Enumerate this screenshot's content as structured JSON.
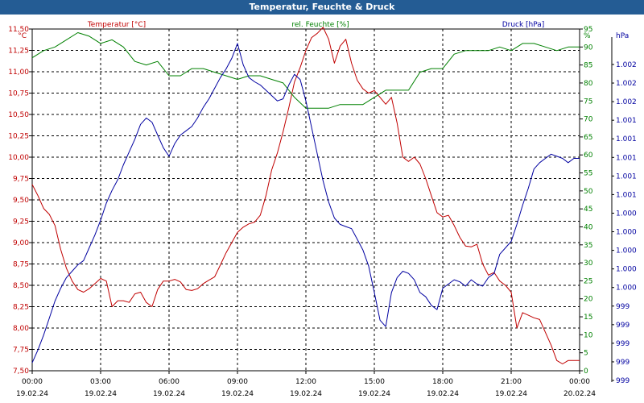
{
  "window": {
    "title": "Temperatur, Feuchte & Druck"
  },
  "chart_data": {
    "type": "line",
    "title": "Temperatur, Feuchte & Druck",
    "xlabel": "",
    "ylabel": "",
    "grid": true,
    "x_ticks": [
      {
        "time": "00:00",
        "date": "19.02.24"
      },
      {
        "time": "03:00",
        "date": "19.02.24"
      },
      {
        "time": "06:00",
        "date": "19.02.24"
      },
      {
        "time": "09:00",
        "date": "19.02.24"
      },
      {
        "time": "12:00",
        "date": "19.02.24"
      },
      {
        "time": "15:00",
        "date": "19.02.24"
      },
      {
        "time": "18:00",
        "date": "19.02.24"
      },
      {
        "time": "21:00",
        "date": "19.02.24"
      },
      {
        "time": "00:00",
        "date": "20.02.24"
      }
    ],
    "xlim_hours": [
      0,
      24
    ],
    "axes": {
      "temperature": {
        "label": "Temperatur [°C]",
        "unit": "°C",
        "color": "#c00000",
        "ylim": [
          7.5,
          11.5
        ],
        "ticks": [
          "7,50",
          "7,75",
          "8,00",
          "8,25",
          "8,50",
          "8,75",
          "9,00",
          "9,25",
          "9,50",
          "9,75",
          "10,00",
          "10,25",
          "10,50",
          "10,75",
          "11,00",
          "11,25",
          "11,50"
        ]
      },
      "humidity": {
        "label": "rel. Feuchte [%]",
        "unit": "%",
        "color": "#008000",
        "ylim": [
          0,
          95
        ],
        "ticks": [
          "0",
          "5",
          "10",
          "15",
          "20",
          "25",
          "30",
          "35",
          "40",
          "45",
          "50",
          "55",
          "60",
          "65",
          "70",
          "75",
          "80",
          "85",
          "90",
          "95"
        ]
      },
      "pressure": {
        "label": "Druck [hPa]",
        "unit": "hPa",
        "color": "#0000a0",
        "ticks": [
          "999",
          "999",
          "999",
          "999",
          "999",
          "1.000",
          "1.000",
          "1.000",
          "1.000",
          "1.000",
          "1.001",
          "1.001",
          "1.001",
          "1.001",
          "1.001",
          "1.002",
          "1.002",
          "1.002"
        ]
      }
    },
    "series": [
      {
        "name": "Temperatur [°C]",
        "axis": "temperature",
        "color": "#c00000",
        "x": [
          0,
          0.25,
          0.5,
          0.75,
          1,
          1.25,
          1.5,
          1.75,
          2,
          2.25,
          2.5,
          2.75,
          3,
          3.25,
          3.5,
          3.75,
          4,
          4.25,
          4.5,
          4.75,
          5,
          5.25,
          5.5,
          5.75,
          6,
          6.25,
          6.5,
          6.75,
          7,
          7.25,
          7.5,
          7.75,
          8,
          8.25,
          8.5,
          8.75,
          9,
          9.25,
          9.5,
          9.75,
          10,
          10.25,
          10.5,
          10.75,
          11,
          11.25,
          11.5,
          11.75,
          12,
          12.25,
          12.5,
          12.75,
          13,
          13.25,
          13.5,
          13.75,
          14,
          14.25,
          14.5,
          14.75,
          15,
          15.25,
          15.5,
          15.75,
          16,
          16.25,
          16.5,
          16.75,
          17,
          17.25,
          17.5,
          17.75,
          18,
          18.25,
          18.5,
          18.75,
          19,
          19.25,
          19.5,
          19.75,
          20,
          20.25,
          20.5,
          20.75,
          21,
          21.25,
          21.5,
          21.75,
          22,
          22.25,
          22.5,
          22.75,
          23,
          23.25,
          23.5,
          23.75,
          24
        ],
        "values": [
          9.68,
          9.55,
          9.4,
          9.33,
          9.2,
          8.92,
          8.7,
          8.55,
          8.45,
          8.42,
          8.46,
          8.52,
          8.58,
          8.55,
          8.25,
          8.32,
          8.32,
          8.3,
          8.4,
          8.42,
          8.3,
          8.25,
          8.45,
          8.55,
          8.55,
          8.57,
          8.54,
          8.45,
          8.44,
          8.46,
          8.52,
          8.56,
          8.6,
          8.74,
          8.88,
          9.0,
          9.12,
          9.18,
          9.22,
          9.24,
          9.32,
          9.55,
          9.85,
          10.05,
          10.3,
          10.58,
          10.88,
          11.05,
          11.25,
          11.4,
          11.45,
          11.52,
          11.38,
          11.1,
          11.3,
          11.38,
          11.1,
          10.9,
          10.8,
          10.75,
          10.78,
          10.7,
          10.62,
          10.7,
          10.4,
          10.0,
          9.95,
          10.0,
          9.92,
          9.75,
          9.55,
          9.35,
          9.3,
          9.32,
          9.2,
          9.06,
          8.96,
          8.95,
          8.98,
          8.75,
          8.62,
          8.65,
          8.55,
          8.5,
          8.42,
          8.0,
          8.18,
          8.15,
          8.12,
          8.1,
          7.95,
          7.8,
          7.62,
          7.58,
          7.62,
          7.62,
          7.62
        ]
      },
      {
        "name": "rel. Feuchte [%]",
        "axis": "humidity",
        "color": "#008000",
        "x": [
          0,
          0.5,
          1,
          1.5,
          2,
          2.5,
          3,
          3.5,
          4,
          4.5,
          5,
          5.5,
          6,
          6.5,
          7,
          7.5,
          8,
          8.5,
          9,
          9.5,
          10,
          10.5,
          11,
          11.5,
          12,
          12.5,
          13,
          13.5,
          14,
          14.5,
          15,
          15.5,
          16,
          16.5,
          17,
          17.5,
          18,
          18.5,
          19,
          19.5,
          20,
          20.5,
          21,
          21.5,
          22,
          22.5,
          23,
          23.5,
          24
        ],
        "values": [
          87,
          89,
          90,
          92,
          94,
          93,
          91,
          92,
          90,
          86,
          85,
          86,
          82,
          82,
          84,
          84,
          83,
          82,
          81,
          82,
          82,
          81,
          80,
          76,
          73,
          73,
          73,
          74,
          74,
          74,
          76,
          78,
          78,
          78,
          83,
          84,
          84,
          88,
          89,
          89,
          89,
          90,
          89,
          91,
          91,
          90,
          89,
          90,
          90
        ]
      },
      {
        "name": "Druck [hPa]",
        "axis": "pressure",
        "color": "#0000a0",
        "x": [
          0,
          0.25,
          0.5,
          0.75,
          1,
          1.25,
          1.5,
          1.75,
          2,
          2.25,
          2.5,
          2.75,
          3,
          3.25,
          3.5,
          3.75,
          4,
          4.25,
          4.5,
          4.75,
          5,
          5.25,
          5.5,
          5.75,
          6,
          6.25,
          6.5,
          6.75,
          7,
          7.25,
          7.5,
          7.75,
          8,
          8.25,
          8.5,
          8.75,
          9,
          9.25,
          9.5,
          9.75,
          10,
          10.25,
          10.5,
          10.75,
          11,
          11.25,
          11.5,
          11.75,
          12,
          12.25,
          12.5,
          12.75,
          13,
          13.25,
          13.5,
          13.75,
          14,
          14.25,
          14.5,
          14.75,
          15,
          15.25,
          15.5,
          15.75,
          16,
          16.25,
          16.5,
          16.75,
          17,
          17.25,
          17.5,
          17.75,
          18,
          18.25,
          18.5,
          18.75,
          19,
          19.25,
          19.5,
          19.75,
          20,
          20.25,
          20.5,
          20.75,
          21,
          21.25,
          21.5,
          21.75,
          22,
          22.25,
          22.5,
          22.75,
          23,
          23.25,
          23.5,
          23.75,
          24
        ],
        "values": [
          998.84,
          998.96,
          999.1,
          999.26,
          999.42,
          999.54,
          999.64,
          999.7,
          999.76,
          999.8,
          999.92,
          1000.04,
          1000.18,
          1000.34,
          1000.46,
          1000.56,
          1000.7,
          1000.82,
          1000.94,
          1001.08,
          1001.14,
          1001.1,
          1000.98,
          1000.86,
          1000.78,
          1000.9,
          1000.98,
          1001.02,
          1001.06,
          1001.14,
          1001.24,
          1001.32,
          1001.42,
          1001.52,
          1001.6,
          1001.7,
          1001.84,
          1001.64,
          1001.52,
          1001.48,
          1001.45,
          1001.4,
          1001.35,
          1001.3,
          1001.32,
          1001.45,
          1001.55,
          1001.5,
          1001.3,
          1001.05,
          1000.8,
          1000.55,
          1000.35,
          1000.2,
          1000.14,
          1000.12,
          1000.1,
          1000.0,
          999.9,
          999.75,
          999.5,
          999.24,
          999.18,
          999.5,
          999.64,
          999.7,
          999.68,
          999.62,
          999.5,
          999.46,
          999.38,
          999.34,
          999.54,
          999.58,
          999.62,
          999.6,
          999.56,
          999.62,
          999.58,
          999.56,
          999.64,
          999.68,
          999.86,
          999.92,
          999.98,
          1000.14,
          1000.32,
          1000.48,
          1000.66,
          1000.72,
          1000.76,
          1000.8,
          1000.78,
          1000.76,
          1000.72,
          1000.76,
          1000.76
        ]
      }
    ]
  }
}
